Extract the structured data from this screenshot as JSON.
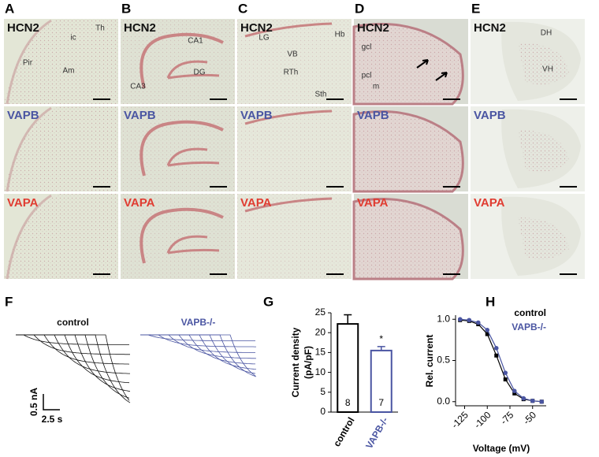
{
  "panels": [
    {
      "letter": "A",
      "rows": [
        "HCN2",
        "VAPB",
        "VAPA"
      ],
      "regions": [
        "Th",
        "ic",
        "Pir",
        "Am"
      ]
    },
    {
      "letter": "B",
      "rows": [
        "HCN2",
        "VAPB",
        "VAPA"
      ],
      "regions": [
        "CA1",
        "DG",
        "CA3"
      ]
    },
    {
      "letter": "C",
      "rows": [
        "HCN2",
        "VAPB",
        "VAPA"
      ],
      "regions": [
        "LG",
        "Hb",
        "VB",
        "RTh",
        "Sth"
      ]
    },
    {
      "letter": "D",
      "rows": [
        "HCN2",
        "VAPB",
        "VAPA"
      ],
      "regions": [
        "gcl",
        "pcl",
        "m"
      ]
    },
    {
      "letter": "E",
      "rows": [
        "HCN2",
        "VAPB",
        "VAPA"
      ],
      "regions": [
        "DH",
        "VH"
      ]
    }
  ],
  "traces": {
    "letter": "F",
    "titles": [
      "control",
      "VAPB-/-"
    ],
    "scale": [
      "0.5 nA",
      "2.5 s"
    ]
  },
  "chart_data": [
    {
      "type": "bar",
      "panel_label": "G",
      "ylabel_lines": [
        "Current density",
        "(pA/pF)"
      ],
      "categories": [
        "control",
        "VAPB-/-"
      ],
      "values": [
        22.2,
        15.5
      ],
      "errors": [
        2.3,
        1.0
      ],
      "n_labels": [
        "8",
        "7"
      ],
      "colors": [
        "#000000",
        "#4a55a2"
      ],
      "annotation": "*",
      "ylim": [
        0,
        25
      ],
      "yticks": [
        0,
        5,
        10,
        15,
        20,
        25
      ]
    },
    {
      "type": "line",
      "panel_label": "H",
      "xlabel": "Voltage (mV)",
      "ylabel": "Rel. current",
      "x": [
        -130,
        -120,
        -110,
        -100,
        -90,
        -80,
        -70,
        -60,
        -50,
        -40
      ],
      "series": [
        {
          "name": "control",
          "color": "#000000",
          "values": [
            0.99,
            0.98,
            0.94,
            0.82,
            0.56,
            0.27,
            0.1,
            0.03,
            0.01,
            0.0
          ]
        },
        {
          "name": "VAPB-/-",
          "color": "#4a55a2",
          "values": [
            1.0,
            0.99,
            0.96,
            0.87,
            0.65,
            0.35,
            0.13,
            0.04,
            0.01,
            0.0
          ]
        }
      ],
      "xlim": [
        -135,
        -35
      ],
      "xticks": [
        -125,
        -100,
        -75,
        -50
      ],
      "ylim": [
        -0.05,
        1.05
      ],
      "yticks": [
        {
          "value": 0,
          "label": "0.0"
        },
        {
          "value": 0.5,
          "label": "0.5"
        },
        {
          "value": 1,
          "label": "1.0"
        }
      ],
      "legend": "upper right"
    }
  ]
}
